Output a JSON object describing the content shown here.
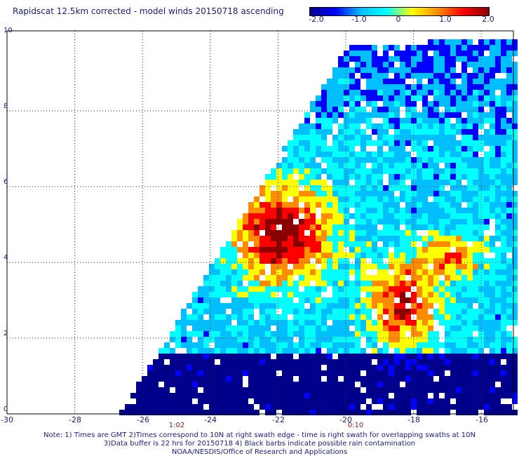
{
  "title": "Rapidscat 12.5km corrected - model winds 20150718 ascending",
  "colorbar": {
    "labels": [
      "-2.0",
      "-1.0",
      "0",
      "1.0",
      "2.0"
    ],
    "stops": [
      "#00008b",
      "#0000ff",
      "#00bfff",
      "#00ffff",
      "#ffff00",
      "#ff8c00",
      "#ff0000",
      "#8b0000"
    ]
  },
  "axes": {
    "x_ticks": [
      "-30",
      "-28",
      "-26",
      "-24",
      "-22",
      "-20",
      "-18",
      "-16"
    ],
    "y_ticks": [
      "0",
      "2",
      "4",
      "6",
      "8",
      "10"
    ]
  },
  "time_labels": [
    "1:02",
    "0:10"
  ],
  "notes": [
    "Note: 1) Times are GMT 2)Times correspond to 10N at right swath edge - time is right swath for overlapping swaths at 10N",
    "3)Data buffer is 22 hrs for 20150718 4) Black barbs indicate possible rain contamination",
    "NOAA/NESDIS/Office of Research and Applications"
  ]
}
